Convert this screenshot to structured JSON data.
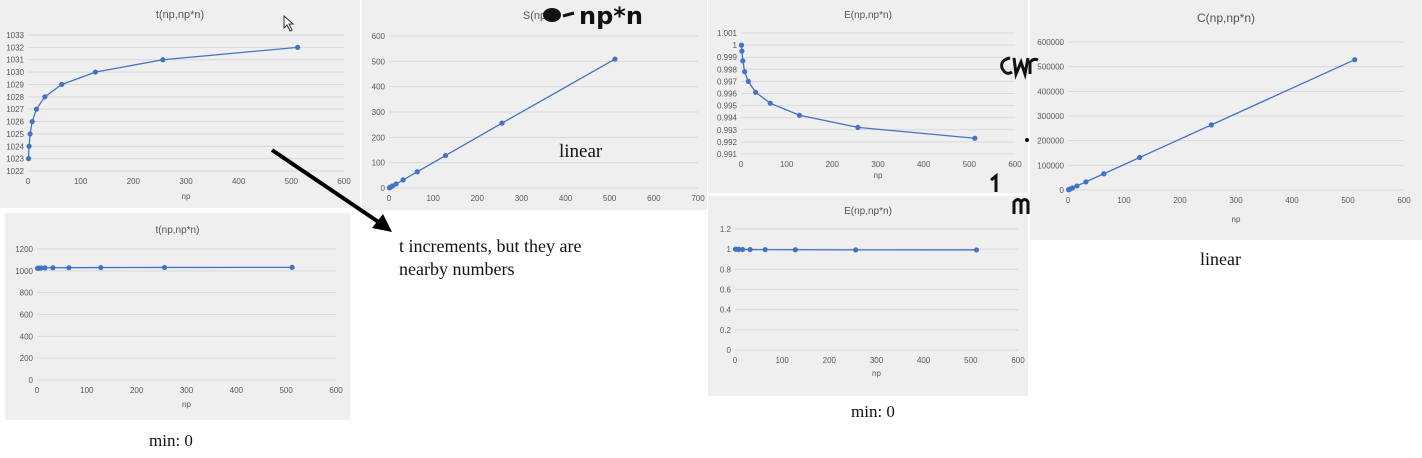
{
  "annotations": {
    "arrow_note_line1": "t increments, but they are",
    "arrow_note_line2": "nearby numbers",
    "speedup_note": "linear",
    "cost_note": "linear",
    "time_min": "min: 0",
    "eff_min": "min: 0",
    "handwriting_np_n": "np*n"
  },
  "series_color": "#4472c4",
  "chart_data": [
    {
      "id": "t-zoom",
      "type": "line",
      "title": "t(np,np*n)",
      "xlabel": "np",
      "ylabel": "",
      "x": [
        1,
        2,
        4,
        8,
        16,
        32,
        64,
        128,
        256,
        512
      ],
      "y": [
        1023,
        1024,
        1025,
        1026,
        1027,
        1028,
        1029,
        1030,
        1031,
        1032
      ],
      "xlim": [
        0,
        600
      ],
      "ylim": [
        1022,
        1033
      ],
      "xticks": [
        0,
        100,
        200,
        300,
        400,
        500,
        600
      ],
      "yticks": [
        1022,
        1023,
        1024,
        1025,
        1026,
        1027,
        1028,
        1029,
        1030,
        1031,
        1032,
        1033
      ],
      "grid": true
    },
    {
      "id": "t-full",
      "type": "line",
      "title": "t(np,np*n)",
      "xlabel": "np",
      "ylabel": "",
      "x": [
        1,
        2,
        4,
        8,
        16,
        32,
        64,
        128,
        256,
        512
      ],
      "y": [
        1023,
        1024,
        1025,
        1026,
        1027,
        1028,
        1029,
        1030,
        1031,
        1032
      ],
      "xlim": [
        0,
        600
      ],
      "ylim": [
        0,
        1200
      ],
      "xticks": [
        0,
        100,
        200,
        300,
        400,
        500,
        600
      ],
      "yticks": [
        0,
        200,
        400,
        600,
        800,
        1000,
        1200
      ],
      "grid": true
    },
    {
      "id": "speedup",
      "type": "line",
      "title": "S(np",
      "xlabel": "",
      "ylabel": "",
      "x": [
        1,
        2,
        4,
        8,
        16,
        32,
        64,
        128,
        256,
        512
      ],
      "y": [
        1,
        2,
        4,
        8,
        16,
        32,
        64,
        128,
        256,
        509
      ],
      "xlim": [
        0,
        700
      ],
      "ylim": [
        0,
        600
      ],
      "xticks": [
        0,
        100,
        200,
        300,
        400,
        500,
        600,
        700
      ],
      "yticks": [
        0,
        100,
        200,
        300,
        400,
        500,
        600
      ],
      "grid": true
    },
    {
      "id": "eff-zoom",
      "type": "line",
      "title": "E(np,np*n)",
      "xlabel": "np",
      "ylabel": "",
      "x": [
        1,
        2,
        4,
        8,
        16,
        32,
        64,
        128,
        256,
        512
      ],
      "y": [
        1.0,
        0.9995,
        0.9987,
        0.9978,
        0.997,
        0.9961,
        0.9952,
        0.9942,
        0.9932,
        0.9923
      ],
      "xlim": [
        0,
        600
      ],
      "ylim": [
        0.991,
        1.001
      ],
      "xticks": [
        0,
        100,
        200,
        300,
        400,
        500,
        600
      ],
      "yticks": [
        0.991,
        0.992,
        0.993,
        0.994,
        0.995,
        0.996,
        0.997,
        0.998,
        0.999,
        1,
        1.001
      ],
      "grid": true
    },
    {
      "id": "eff-full",
      "type": "line",
      "title": "E(np,np*n)",
      "xlabel": "np",
      "ylabel": "",
      "x": [
        1,
        2,
        4,
        8,
        16,
        32,
        64,
        128,
        256,
        512
      ],
      "y": [
        1.0,
        0.9995,
        0.9987,
        0.9978,
        0.997,
        0.9961,
        0.9952,
        0.9942,
        0.9932,
        0.9923
      ],
      "xlim": [
        0,
        600
      ],
      "ylim": [
        0,
        1.2
      ],
      "xticks": [
        0,
        100,
        200,
        300,
        400,
        500,
        600
      ],
      "yticks": [
        0,
        0.2,
        0.4,
        0.6,
        0.8,
        1,
        1.2
      ],
      "grid": true
    },
    {
      "id": "cost",
      "type": "line",
      "title": "C(np,np*n)",
      "xlabel": "np",
      "ylabel": "",
      "x": [
        1,
        2,
        4,
        8,
        16,
        32,
        64,
        128,
        256,
        512
      ],
      "y": [
        1023,
        2048,
        4100,
        8208,
        16432,
        32896,
        65856,
        131840,
        263936,
        528384
      ],
      "xlim": [
        0,
        600
      ],
      "ylim": [
        0,
        600000
      ],
      "xticks": [
        0,
        100,
        200,
        300,
        400,
        500,
        600
      ],
      "yticks": [
        0,
        100000,
        200000,
        300000,
        400000,
        500000,
        600000
      ],
      "grid": true
    }
  ]
}
